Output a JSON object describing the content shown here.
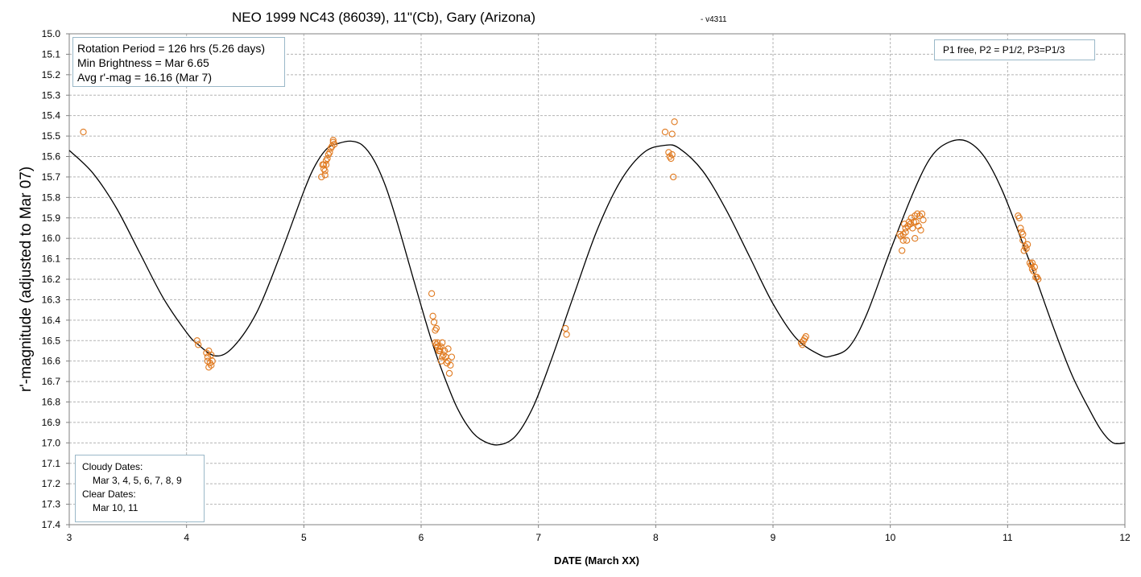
{
  "title": "NEO 1999 NC43 (86039), 11\"(Cb), Gary (Arizona)",
  "version": "- v4311",
  "colors": {
    "data_points": "#e07a20",
    "curve": "#000000",
    "grid": "#b4b4b4",
    "box_border": "#9ab8c8"
  },
  "info_box": {
    "line1": "Rotation Period = 126 hrs (5.26 days)",
    "line2": "Min Brightness = Mar 6.65",
    "line3": "Avg r'-mag = 16.16 (Mar 7)"
  },
  "fit_box": {
    "text": "P1 free, P2 = P1/2, P3=P1/3"
  },
  "dates_box": {
    "cloudy_label": "Cloudy Dates:",
    "cloudy_values": "Mar 3, 4, 5, 6, 7, 8, 9",
    "clear_label": "Clear Dates:",
    "clear_values": "Mar 10, 11"
  },
  "chart_data": {
    "type": "scatter",
    "xlabel": "DATE (March XX)",
    "ylabel": "r'-magnitude  (adjusted to Mar 07)",
    "xlim": [
      3,
      12
    ],
    "ylim": [
      15.0,
      17.4
    ],
    "y_inverted": true,
    "grid": true,
    "x_ticks": [
      "3",
      "4",
      "5",
      "6",
      "7",
      "8",
      "9",
      "10",
      "11",
      "12"
    ],
    "y_ticks": [
      "15.0",
      "15.1",
      "15.2",
      "15.3",
      "15.4",
      "15.5",
      "15.6",
      "15.7",
      "15.8",
      "15.9",
      "16.0",
      "16.1",
      "16.2",
      "16.3",
      "16.4",
      "16.5",
      "16.6",
      "16.7",
      "16.8",
      "16.9",
      "17.0",
      "17.1",
      "17.2",
      "17.3",
      "17.4"
    ],
    "series": [
      {
        "type": "scatter",
        "marker": "open-circle",
        "points": [
          [
            3.12,
            15.48
          ],
          [
            4.09,
            16.5
          ],
          [
            4.1,
            16.52
          ],
          [
            4.17,
            16.56
          ],
          [
            4.18,
            16.58
          ],
          [
            4.19,
            16.55
          ],
          [
            4.18,
            16.6
          ],
          [
            4.2,
            16.61
          ],
          [
            4.21,
            16.57
          ],
          [
            4.19,
            16.63
          ],
          [
            4.22,
            16.6
          ],
          [
            4.21,
            16.62
          ],
          [
            5.16,
            15.64
          ],
          [
            5.17,
            15.66
          ],
          [
            5.15,
            15.7
          ],
          [
            5.18,
            15.67
          ],
          [
            5.19,
            15.64
          ],
          [
            5.19,
            15.62
          ],
          [
            5.2,
            15.61
          ],
          [
            5.21,
            15.59
          ],
          [
            5.22,
            15.58
          ],
          [
            5.23,
            15.56
          ],
          [
            5.24,
            15.55
          ],
          [
            5.25,
            15.52
          ],
          [
            5.25,
            15.53
          ],
          [
            5.26,
            15.54
          ],
          [
            5.18,
            15.69
          ],
          [
            5.17,
            15.64
          ],
          [
            6.09,
            16.27
          ],
          [
            6.1,
            16.38
          ],
          [
            6.11,
            16.41
          ],
          [
            6.12,
            16.45
          ],
          [
            6.13,
            16.44
          ],
          [
            6.12,
            16.51
          ],
          [
            6.13,
            16.52
          ],
          [
            6.14,
            16.51
          ],
          [
            6.14,
            16.53
          ],
          [
            6.15,
            16.55
          ],
          [
            6.16,
            16.54
          ],
          [
            6.17,
            16.53
          ],
          [
            6.18,
            16.58
          ],
          [
            6.17,
            16.6
          ],
          [
            6.19,
            16.57
          ],
          [
            6.2,
            16.55
          ],
          [
            6.21,
            16.58
          ],
          [
            6.22,
            16.61
          ],
          [
            6.23,
            16.6
          ],
          [
            6.23,
            16.54
          ],
          [
            6.24,
            16.66
          ],
          [
            6.25,
            16.62
          ],
          [
            6.26,
            16.58
          ],
          [
            6.18,
            16.51
          ],
          [
            6.16,
            16.55
          ],
          [
            7.23,
            16.44
          ],
          [
            7.24,
            16.47
          ],
          [
            8.08,
            15.48
          ],
          [
            8.11,
            15.58
          ],
          [
            8.12,
            15.6
          ],
          [
            8.13,
            15.61
          ],
          [
            8.14,
            15.59
          ],
          [
            8.14,
            15.49
          ],
          [
            8.16,
            15.43
          ],
          [
            8.15,
            15.7
          ],
          [
            9.24,
            16.51
          ],
          [
            9.25,
            16.52
          ],
          [
            9.27,
            16.49
          ],
          [
            9.28,
            16.48
          ],
          [
            9.26,
            16.5
          ],
          [
            10.08,
            15.98
          ],
          [
            10.09,
            15.99
          ],
          [
            10.1,
            16.06
          ],
          [
            10.11,
            16.01
          ],
          [
            10.12,
            15.93
          ],
          [
            10.13,
            15.97
          ],
          [
            10.13,
            15.95
          ],
          [
            10.15,
            15.94
          ],
          [
            10.16,
            15.92
          ],
          [
            10.17,
            15.93
          ],
          [
            10.18,
            15.9
          ],
          [
            10.19,
            15.95
          ],
          [
            10.2,
            15.92
          ],
          [
            10.21,
            15.89
          ],
          [
            10.21,
            16.0
          ],
          [
            10.22,
            15.92
          ],
          [
            10.23,
            15.88
          ],
          [
            10.24,
            15.94
          ],
          [
            10.25,
            15.89
          ],
          [
            10.26,
            15.96
          ],
          [
            10.27,
            15.88
          ],
          [
            10.28,
            15.91
          ],
          [
            10.11,
            15.98
          ],
          [
            10.14,
            16.01
          ],
          [
            11.09,
            15.89
          ],
          [
            11.1,
            15.9
          ],
          [
            11.11,
            15.95
          ],
          [
            11.12,
            15.97
          ],
          [
            11.13,
            15.98
          ],
          [
            11.13,
            16.01
          ],
          [
            11.14,
            16.06
          ],
          [
            11.15,
            16.04
          ],
          [
            11.16,
            16.05
          ],
          [
            11.17,
            16.03
          ],
          [
            11.19,
            16.12
          ],
          [
            11.2,
            16.13
          ],
          [
            11.21,
            16.12
          ],
          [
            11.22,
            16.16
          ],
          [
            11.23,
            16.14
          ],
          [
            11.24,
            16.19
          ],
          [
            11.25,
            16.19
          ],
          [
            11.26,
            16.2
          ],
          [
            11.21,
            16.15
          ]
        ]
      },
      {
        "type": "line",
        "marker": "none",
        "points": [
          [
            3.0,
            15.57
          ],
          [
            3.2,
            15.68
          ],
          [
            3.4,
            15.85
          ],
          [
            3.6,
            16.07
          ],
          [
            3.8,
            16.29
          ],
          [
            4.0,
            16.46
          ],
          [
            4.1,
            16.52
          ],
          [
            4.25,
            16.575
          ],
          [
            4.4,
            16.53
          ],
          [
            4.6,
            16.36
          ],
          [
            4.8,
            16.08
          ],
          [
            5.0,
            15.77
          ],
          [
            5.1,
            15.64
          ],
          [
            5.2,
            15.56
          ],
          [
            5.3,
            15.535
          ],
          [
            5.4,
            15.525
          ],
          [
            5.5,
            15.545
          ],
          [
            5.6,
            15.62
          ],
          [
            5.7,
            15.75
          ],
          [
            5.8,
            15.93
          ],
          [
            5.9,
            16.13
          ],
          [
            6.0,
            16.33
          ],
          [
            6.1,
            16.52
          ],
          [
            6.2,
            16.68
          ],
          [
            6.3,
            16.82
          ],
          [
            6.4,
            16.92
          ],
          [
            6.5,
            16.98
          ],
          [
            6.65,
            17.01
          ],
          [
            6.8,
            16.97
          ],
          [
            6.95,
            16.83
          ],
          [
            7.1,
            16.61
          ],
          [
            7.3,
            16.28
          ],
          [
            7.5,
            15.96
          ],
          [
            7.7,
            15.72
          ],
          [
            7.9,
            15.58
          ],
          [
            8.08,
            15.545
          ],
          [
            8.2,
            15.56
          ],
          [
            8.4,
            15.67
          ],
          [
            8.6,
            15.86
          ],
          [
            8.8,
            16.09
          ],
          [
            9.0,
            16.32
          ],
          [
            9.2,
            16.49
          ],
          [
            9.4,
            16.57
          ],
          [
            9.5,
            16.575
          ],
          [
            9.65,
            16.53
          ],
          [
            9.8,
            16.37
          ],
          [
            10.0,
            16.06
          ],
          [
            10.2,
            15.77
          ],
          [
            10.35,
            15.6
          ],
          [
            10.5,
            15.53
          ],
          [
            10.65,
            15.525
          ],
          [
            10.8,
            15.6
          ],
          [
            10.95,
            15.76
          ],
          [
            11.1,
            15.98
          ],
          [
            11.25,
            16.21
          ],
          [
            11.4,
            16.45
          ],
          [
            11.55,
            16.67
          ],
          [
            11.7,
            16.84
          ],
          [
            11.8,
            16.94
          ],
          [
            11.9,
            17.0
          ],
          [
            12.0,
            17.0
          ]
        ]
      }
    ]
  }
}
